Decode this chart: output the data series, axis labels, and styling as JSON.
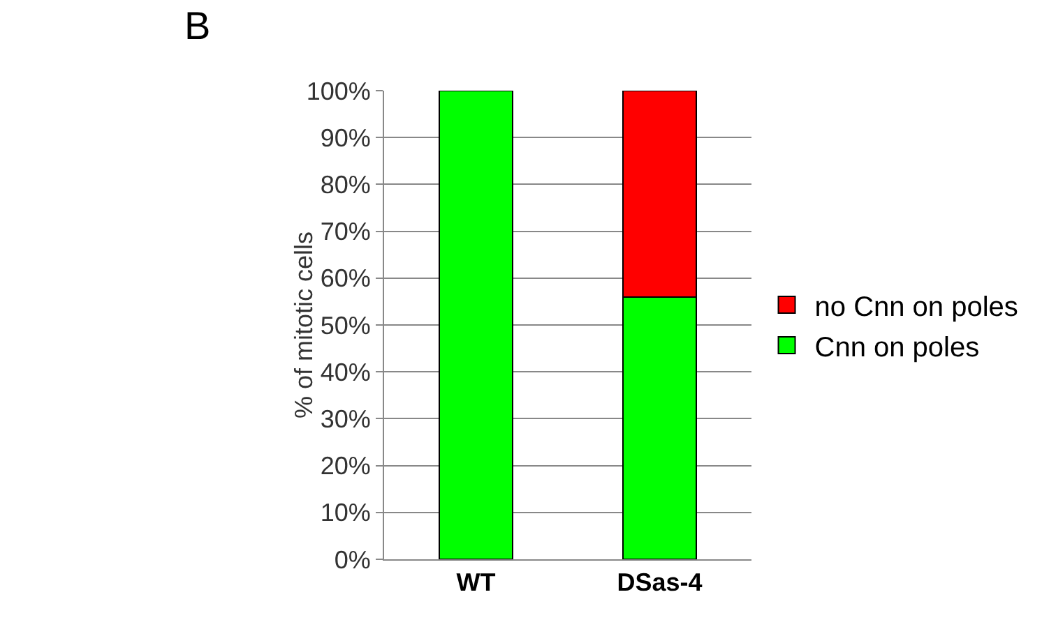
{
  "chart_data": {
    "type": "bar",
    "stacked": true,
    "categories": [
      "WT",
      "DSas-4"
    ],
    "series": [
      {
        "name": "Cnn on poles",
        "color": "#00ff00",
        "values": [
          100,
          56
        ]
      },
      {
        "name": "no Cnn on poles",
        "color": "#ff0000",
        "values": [
          null,
          44
        ]
      }
    ],
    "ylabel": "% of mitotic cells",
    "ylim": [
      0,
      100
    ],
    "yticks": [
      {
        "value": 0,
        "label": "0%"
      },
      {
        "value": 10,
        "label": "10%"
      },
      {
        "value": 20,
        "label": "20%"
      },
      {
        "value": 30,
        "label": "30%"
      },
      {
        "value": 40,
        "label": "40%"
      },
      {
        "value": 50,
        "label": "50%"
      },
      {
        "value": 60,
        "label": "60%"
      },
      {
        "value": 70,
        "label": "70%"
      },
      {
        "value": 80,
        "label": "80%"
      },
      {
        "value": 90,
        "label": "90%"
      },
      {
        "value": 100,
        "label": "100%"
      }
    ],
    "grid": "y",
    "legend": "right",
    "annotations": [
      "B"
    ]
  }
}
